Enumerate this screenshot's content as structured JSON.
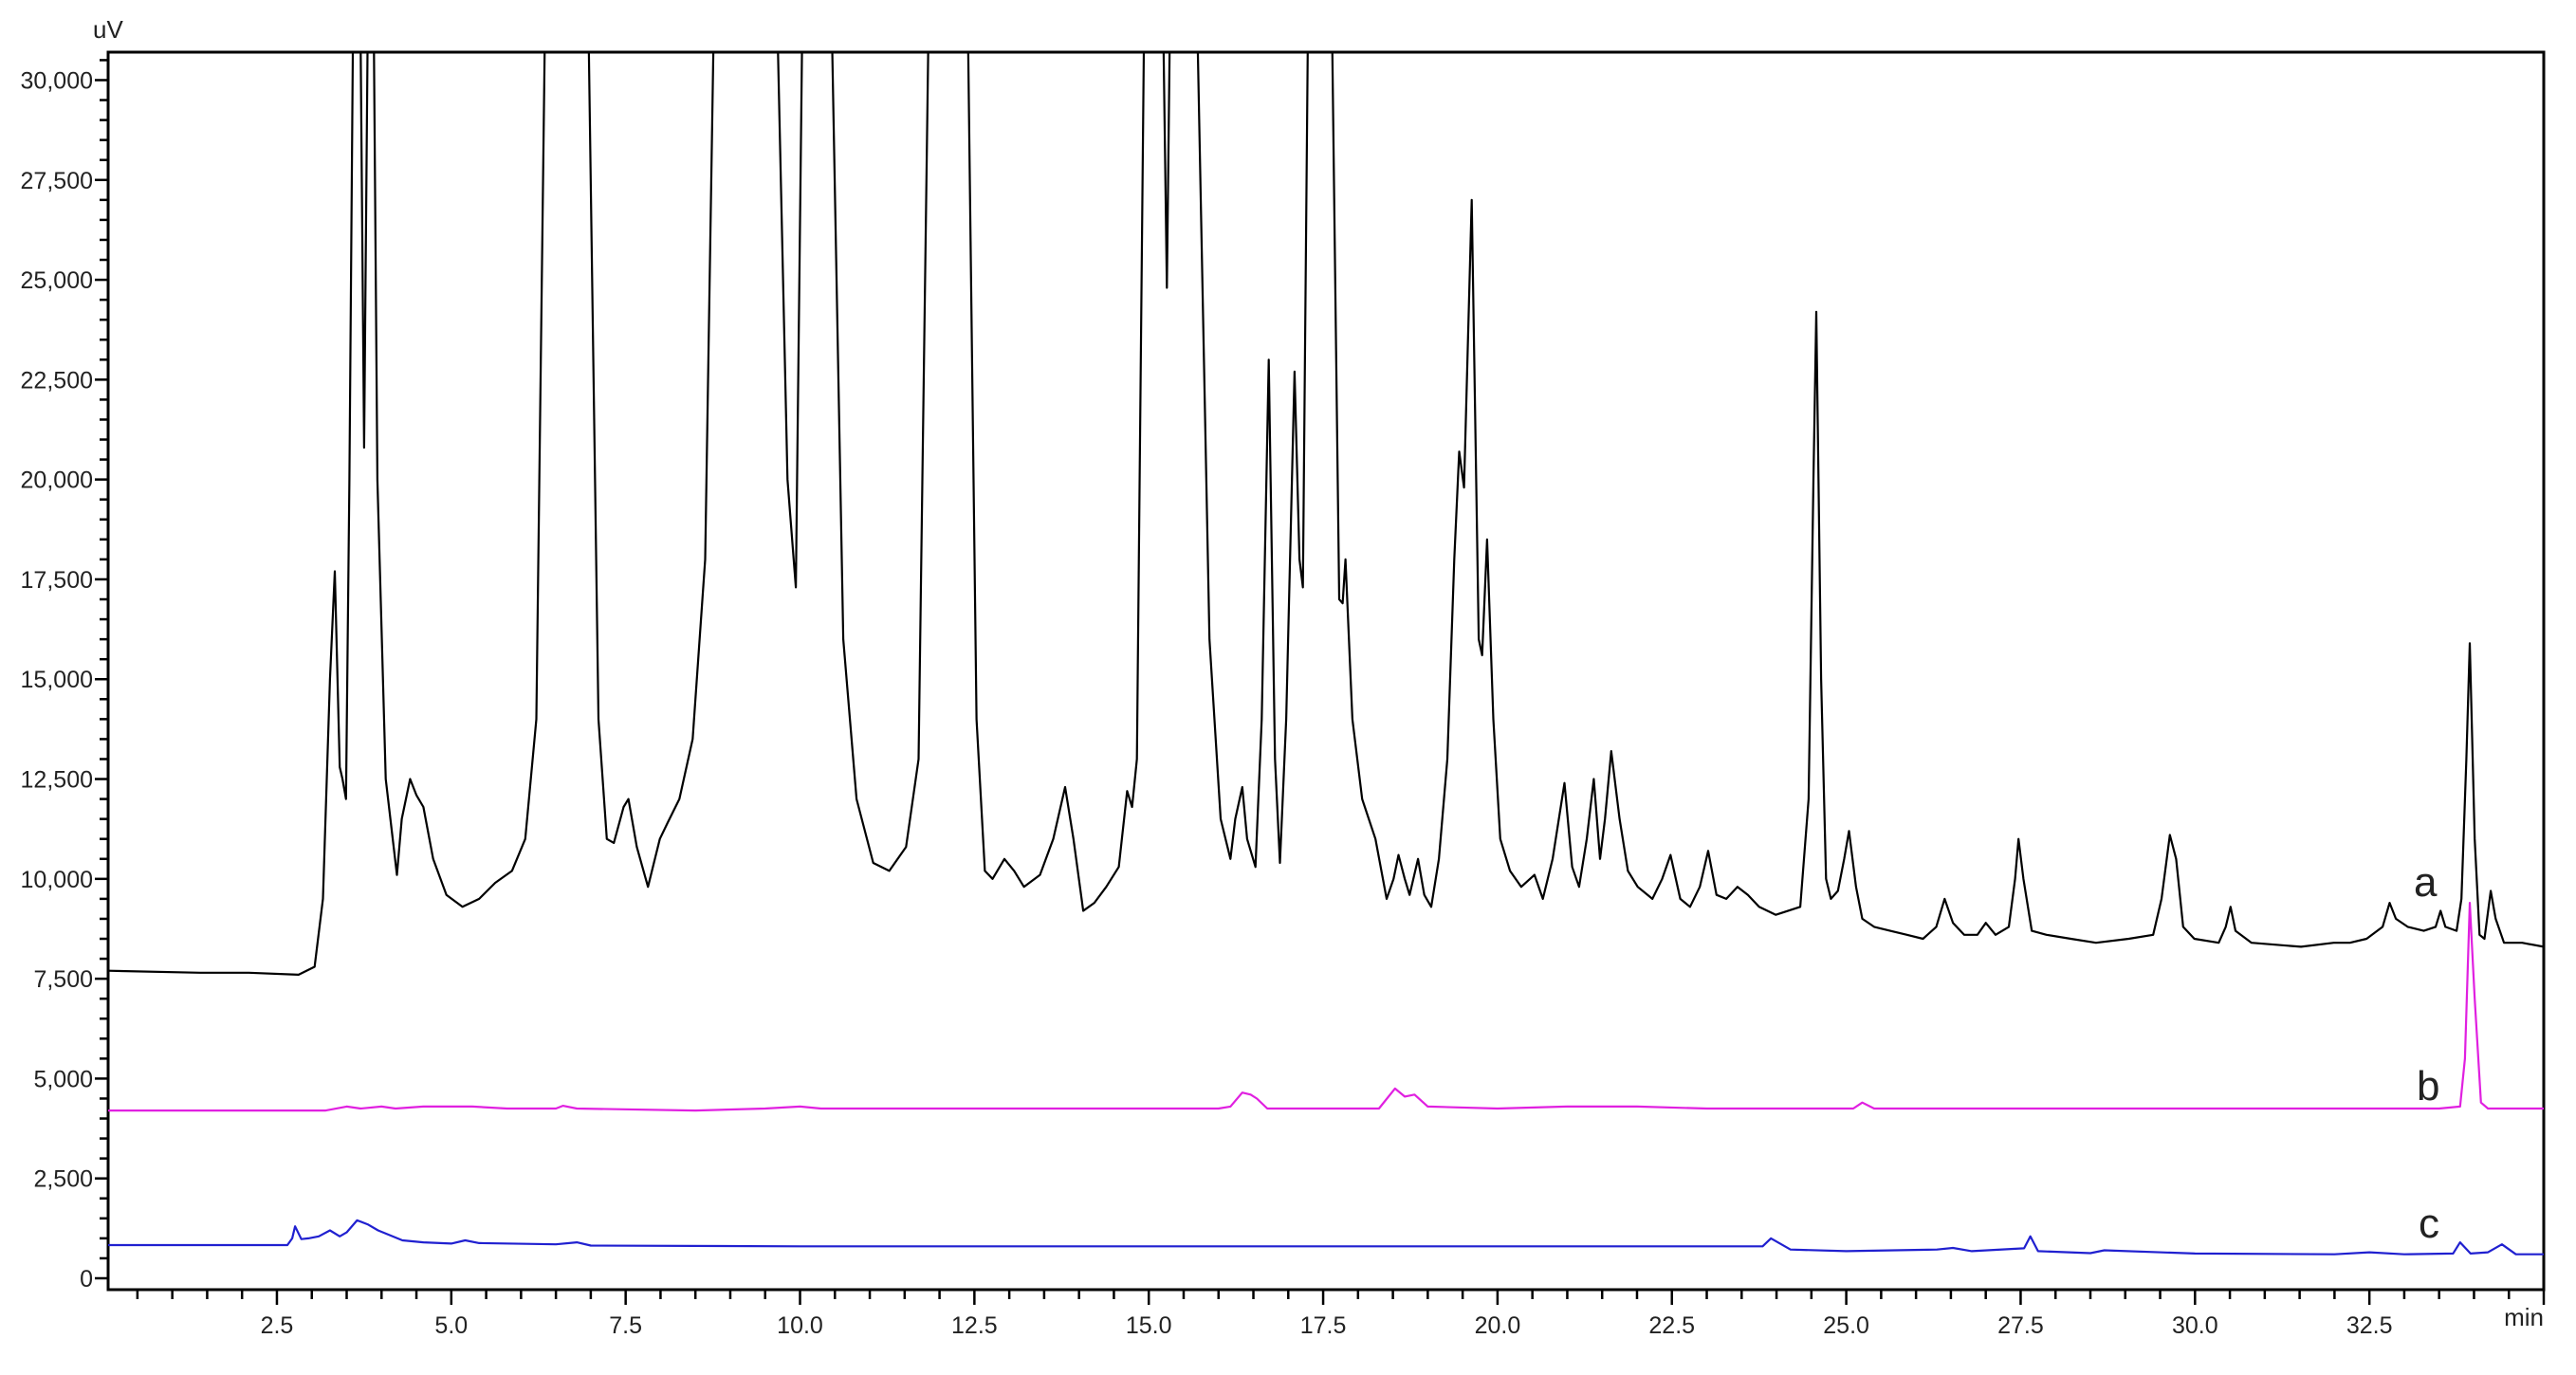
{
  "chart_data": {
    "type": "line",
    "title": "",
    "xlabel": "min",
    "ylabel": "uV",
    "xlim": [
      0.08,
      35.0
    ],
    "ylim": [
      -285,
      30700
    ],
    "grid": false,
    "legend": "none",
    "x_ticks": [
      2.5,
      5.0,
      7.5,
      10.0,
      12.5,
      15.0,
      17.5,
      20.0,
      22.5,
      25.0,
      27.5,
      30.0,
      32.5
    ],
    "x_tick_labels": [
      "2.5",
      "5.0",
      "7.5",
      "10.0",
      "12.5",
      "15.0",
      "17.5",
      "20.0",
      "22.5",
      "25.0",
      "27.5",
      "30.0",
      "32.5"
    ],
    "y_ticks": [
      0,
      2500,
      5000,
      7500,
      10000,
      12500,
      15000,
      17500,
      20000,
      22500,
      25000,
      27500,
      30000
    ],
    "y_tick_labels": [
      "0",
      "2,500",
      "5,000",
      "7,500",
      "10,000",
      "12,500",
      "15,000",
      "17,500",
      "20,000",
      "22,500",
      "25,000",
      "27,500",
      "30,000"
    ],
    "series": [
      {
        "name": "a",
        "color": "#000000",
        "x": [
          0.08,
          1.4,
          2.1,
          2.81,
          3.04,
          3.16,
          3.26,
          3.33,
          3.4,
          3.44,
          3.49,
          3.54,
          3.59,
          3.7,
          3.75,
          3.8,
          3.89,
          3.94,
          4.06,
          4.22,
          4.29,
          4.41,
          4.5,
          4.6,
          4.74,
          4.93,
          5.16,
          5.4,
          5.63,
          5.87,
          6.06,
          6.22,
          6.34,
          6.97,
          7.11,
          7.23,
          7.33,
          7.47,
          7.54,
          7.66,
          7.82,
          7.99,
          8.1,
          8.27,
          8.46,
          8.64,
          8.76,
          9.68,
          9.82,
          9.94,
          10.03,
          10.46,
          10.62,
          10.81,
          11.05,
          11.28,
          11.52,
          11.7,
          11.84,
          12.41,
          12.53,
          12.65,
          12.76,
          12.93,
          13.07,
          13.21,
          13.44,
          13.63,
          13.8,
          13.92,
          14.06,
          14.22,
          14.39,
          14.57,
          14.69,
          14.76,
          14.83,
          14.93,
          15.21,
          15.26,
          15.3,
          15.7,
          15.87,
          16.03,
          16.17,
          16.24,
          16.34,
          16.41,
          16.53,
          16.62,
          16.72,
          16.81,
          16.88,
          16.97,
          17.09,
          17.16,
          17.21,
          17.28,
          17.63,
          17.73,
          17.78,
          17.82,
          17.92,
          18.06,
          18.25,
          18.41,
          18.51,
          18.58,
          18.67,
          18.74,
          18.86,
          18.95,
          19.05,
          19.16,
          19.28,
          19.38,
          19.45,
          19.52,
          19.63,
          19.73,
          19.78,
          19.85,
          19.94,
          20.04,
          20.18,
          20.34,
          20.53,
          20.65,
          20.79,
          20.96,
          21.07,
          21.17,
          21.28,
          21.38,
          21.47,
          21.54,
          21.63,
          21.75,
          21.87,
          22.01,
          22.22,
          22.36,
          22.48,
          22.62,
          22.76,
          22.9,
          23.02,
          23.14,
          23.28,
          23.44,
          23.59,
          23.75,
          23.99,
          24.34,
          24.46,
          24.53,
          24.57,
          24.64,
          24.71,
          24.78,
          24.88,
          24.97,
          25.04,
          25.14,
          25.23,
          25.4,
          25.63,
          25.87,
          26.1,
          26.29,
          26.41,
          26.53,
          26.69,
          26.88,
          27.0,
          27.14,
          27.33,
          27.42,
          27.47,
          27.54,
          27.66,
          27.87,
          28.22,
          28.58,
          29.05,
          29.4,
          29.52,
          29.64,
          29.73,
          29.83,
          29.99,
          30.34,
          30.44,
          30.51,
          30.58,
          30.81,
          31.52,
          31.99,
          32.22,
          32.46,
          32.69,
          32.79,
          32.88,
          33.05,
          33.28,
          33.45,
          33.52,
          33.59,
          33.75,
          33.82,
          33.89,
          33.94,
          34.01,
          34.08,
          34.15,
          34.24,
          34.31,
          34.43,
          34.69,
          35.0
        ],
        "y": [
          7700,
          7650,
          7650,
          7600,
          7800,
          9500,
          15000,
          17700,
          12800,
          12500,
          12000,
          20000,
          31000,
          31000,
          20800,
          31000,
          31000,
          20000,
          12500,
          10100,
          11500,
          12500,
          12100,
          11800,
          10500,
          9600,
          9300,
          9500,
          9900,
          10200,
          11000,
          14000,
          31000,
          31000,
          14000,
          11000,
          10900,
          11800,
          12000,
          10800,
          9800,
          11000,
          11400,
          12000,
          13500,
          18000,
          31000,
          31000,
          20000,
          17300,
          31000,
          31000,
          16000,
          12000,
          10400,
          10200,
          10800,
          13000,
          31000,
          31000,
          14000,
          10200,
          10000,
          10500,
          10200,
          9800,
          10100,
          11000,
          12300,
          11000,
          9200,
          9400,
          9800,
          10300,
          12200,
          11800,
          13000,
          31000,
          31000,
          24800,
          31000,
          31000,
          16000,
          11500,
          10500,
          11500,
          12300,
          11000,
          10300,
          14000,
          23000,
          13000,
          10400,
          14000,
          22700,
          18000,
          17300,
          31000,
          31000,
          17000,
          16900,
          18000,
          14000,
          12000,
          11000,
          9500,
          10000,
          10600,
          10000,
          9600,
          10500,
          9600,
          9300,
          10500,
          13000,
          18000,
          20700,
          19800,
          27000,
          16000,
          15600,
          18500,
          14000,
          11000,
          10200,
          9800,
          10100,
          9500,
          10500,
          12400,
          10300,
          9800,
          11000,
          12500,
          10500,
          11500,
          13200,
          11500,
          10200,
          9800,
          9500,
          10000,
          10600,
          9500,
          9300,
          9800,
          10700,
          9600,
          9500,
          9800,
          9600,
          9300,
          9100,
          9300,
          12000,
          20000,
          24200,
          15000,
          10000,
          9500,
          9700,
          10500,
          11200,
          9800,
          9000,
          8800,
          8700,
          8600,
          8500,
          8800,
          9500,
          8900,
          8600,
          8600,
          8900,
          8600,
          8800,
          10000,
          11000,
          10000,
          8700,
          8600,
          8500,
          8400,
          8500,
          8600,
          9500,
          11100,
          10500,
          8800,
          8500,
          8400,
          8800,
          9300,
          8700,
          8400,
          8300,
          8400,
          8400,
          8500,
          8800,
          9400,
          9000,
          8800,
          8700,
          8800,
          9200,
          8800,
          8700,
          9500,
          13000,
          15900,
          11000,
          8600,
          8500,
          9700,
          9000,
          8400,
          8400,
          8300
        ]
      },
      {
        "name": "b",
        "color": "#e020e0",
        "x": [
          0.08,
          3.2,
          3.5,
          3.7,
          4.0,
          4.2,
          4.6,
          5.3,
          5.8,
          6.5,
          6.6,
          6.8,
          8.5,
          9.5,
          10.0,
          10.3,
          12.0,
          15.0,
          16.0,
          16.17,
          16.34,
          16.46,
          16.55,
          16.7,
          17.5,
          18.3,
          18.53,
          18.67,
          18.81,
          19.0,
          20.0,
          21.0,
          22.0,
          23.0,
          24.0,
          25.1,
          25.23,
          25.4,
          33.5,
          33.8,
          33.87,
          33.94,
          34.01,
          34.1,
          34.2,
          35.0
        ],
        "y": [
          4200,
          4200,
          4300,
          4250,
          4300,
          4250,
          4300,
          4300,
          4250,
          4250,
          4320,
          4250,
          4200,
          4250,
          4300,
          4250,
          4250,
          4250,
          4250,
          4300,
          4650,
          4600,
          4500,
          4250,
          4250,
          4250,
          4750,
          4550,
          4600,
          4300,
          4250,
          4300,
          4300,
          4250,
          4250,
          4250,
          4400,
          4250,
          4250,
          4300,
          5500,
          9400,
          7000,
          4400,
          4250,
          4250
        ]
      },
      {
        "name": "c",
        "color": "#2020d0",
        "x": [
          0.08,
          2.65,
          2.72,
          2.76,
          2.85,
          2.95,
          3.1,
          3.26,
          3.4,
          3.5,
          3.65,
          3.8,
          3.95,
          4.3,
          4.6,
          5.0,
          5.2,
          5.4,
          6.5,
          6.8,
          7.0,
          10.0,
          23.8,
          23.92,
          24.2,
          25.0,
          26.3,
          26.53,
          26.8,
          27.55,
          27.64,
          27.75,
          28.5,
          28.7,
          30.0,
          32.0,
          32.5,
          33.0,
          33.7,
          33.8,
          33.95,
          34.2,
          34.4,
          34.6,
          35.0
        ],
        "y": [
          830,
          830,
          1000,
          1300,
          980,
          1000,
          1050,
          1200,
          1050,
          1150,
          1450,
          1350,
          1200,
          950,
          900,
          870,
          950,
          880,
          850,
          900,
          820,
          800,
          800,
          1000,
          720,
          680,
          720,
          760,
          680,
          750,
          1050,
          680,
          630,
          700,
          620,
          600,
          650,
          600,
          620,
          900,
          620,
          650,
          850,
          600,
          600
        ]
      }
    ]
  }
}
